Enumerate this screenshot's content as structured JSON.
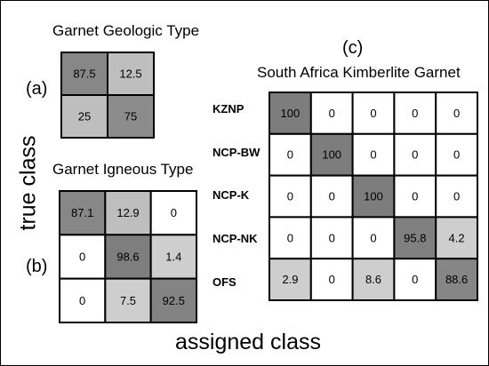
{
  "chart_data": {
    "xlabel": "assigned class",
    "ylabel": "true class",
    "panels": [
      {
        "type": "heatmap",
        "panel_label": "(a)",
        "title": "Garnet Geologic Type",
        "row_labels": [],
        "values": [
          [
            87.5,
            12.5
          ],
          [
            25,
            75
          ]
        ],
        "value_labels": [
          [
            "87.5",
            "12.5"
          ],
          [
            "25",
            "75"
          ]
        ]
      },
      {
        "type": "heatmap",
        "panel_label": "(b)",
        "title": "Garnet Igneous Type",
        "row_labels": [],
        "values": [
          [
            87.1,
            12.9,
            0
          ],
          [
            0,
            98.6,
            1.4
          ],
          [
            0,
            7.5,
            92.5
          ]
        ],
        "value_labels": [
          [
            "87.1",
            "12.9",
            "0"
          ],
          [
            "0",
            "98.6",
            "1.4"
          ],
          [
            "0",
            "7.5",
            "92.5"
          ]
        ]
      },
      {
        "type": "heatmap",
        "panel_label": "(c)",
        "title": "South Africa Kimberlite Garnet",
        "row_labels": [
          "KZNP",
          "NCP-BW",
          "NCP-K",
          "NCP-NK",
          "OFS"
        ],
        "values": [
          [
            100,
            0,
            0,
            0,
            0
          ],
          [
            0,
            100,
            0,
            0,
            0
          ],
          [
            0,
            0,
            100,
            0,
            0
          ],
          [
            0,
            0,
            0,
            95.8,
            4.2
          ],
          [
            2.9,
            0,
            8.6,
            0,
            88.6
          ]
        ],
        "value_labels": [
          [
            "100",
            "0",
            "0",
            "0",
            "0"
          ],
          [
            "0",
            "100",
            "0",
            "0",
            "0"
          ],
          [
            "0",
            "0",
            "100",
            "0",
            "0"
          ],
          [
            "0",
            "0",
            "0",
            "95.8",
            "4.2"
          ],
          [
            "2.9",
            "0",
            "8.6",
            "0",
            "88.6"
          ]
        ]
      }
    ],
    "colormap": {
      "low": "#ffffff",
      "high": "#7d7d7d",
      "mid_shades": [
        "#c4c4c4",
        "#e2e2e2",
        "#f2f2f2"
      ]
    }
  }
}
